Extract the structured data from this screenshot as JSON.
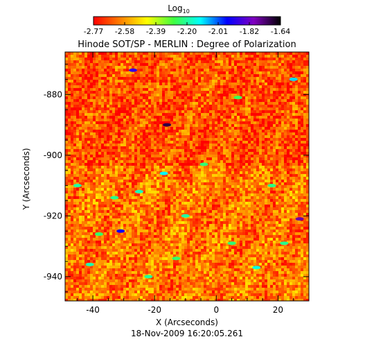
{
  "chart_data": {
    "type": "heatmap",
    "title": "Hinode SOT/SP - MERLIN : Degree of Polarization",
    "colorbar": {
      "label_main": "Log",
      "label_sub": "10",
      "ticks": [
        "-2.77",
        "-2.58",
        "-2.39",
        "-2.20",
        "-2.01",
        "-1.82",
        "-1.64"
      ],
      "range": [
        -2.77,
        -1.64
      ],
      "colormap": [
        "#ff0000",
        "#ff8000",
        "#ffff00",
        "#40ff40",
        "#00ffff",
        "#0000ff",
        "#8000c0",
        "#000000"
      ]
    },
    "xlabel": "X (Arcseconds)",
    "ylabel": "Y (Arcseconds)",
    "xlim": [
      -49,
      30
    ],
    "ylim": [
      -948,
      -866
    ],
    "xticks": [
      -40,
      -20,
      0,
      20
    ],
    "yticks": [
      -880,
      -900,
      -920,
      -940
    ],
    "footer": "18-Nov-2009 16:20:05.261",
    "features": [
      {
        "x": -27,
        "y": -872,
        "value": -1.9
      },
      {
        "x": -16,
        "y": -890,
        "value": -1.7
      },
      {
        "x": 25,
        "y": -875,
        "value": -2.1
      },
      {
        "x": -31,
        "y": -925,
        "value": -1.95
      },
      {
        "x": -17,
        "y": -906,
        "value": -2.12
      },
      {
        "x": 27,
        "y": -921,
        "value": -1.78
      },
      {
        "x": -45,
        "y": -910,
        "value": -2.2
      },
      {
        "x": -33,
        "y": -914,
        "value": -2.22
      },
      {
        "x": -25,
        "y": -912,
        "value": -2.18
      },
      {
        "x": 13,
        "y": -937,
        "value": -2.15
      },
      {
        "x": -10,
        "y": -920,
        "value": -2.2
      },
      {
        "x": 5,
        "y": -929,
        "value": -2.24
      },
      {
        "x": -41,
        "y": -936,
        "value": -2.19
      },
      {
        "x": -22,
        "y": -940,
        "value": -2.21
      },
      {
        "x": -38,
        "y": -926,
        "value": -2.25
      },
      {
        "x": 18,
        "y": -910,
        "value": -2.23
      },
      {
        "x": 7,
        "y": -881,
        "value": -2.26
      },
      {
        "x": -4,
        "y": -903,
        "value": -2.24
      },
      {
        "x": 22,
        "y": -929,
        "value": -2.22
      },
      {
        "x": -13,
        "y": -934,
        "value": -2.25
      }
    ]
  }
}
